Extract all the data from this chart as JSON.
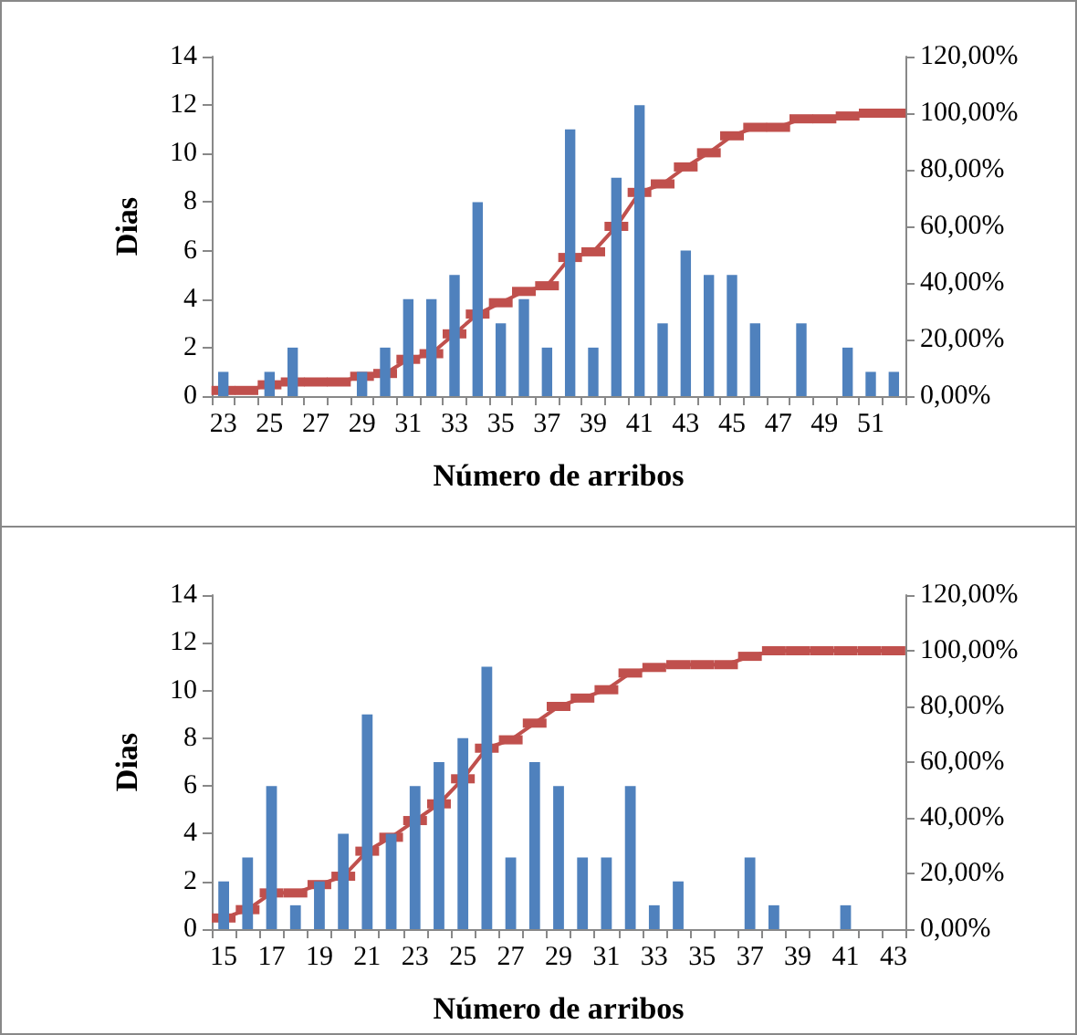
{
  "chart_data": [
    {
      "type": "bar",
      "xlabel": "Número de arribos",
      "ylabel": "Dias",
      "grid": false,
      "marker": "square",
      "categories": [
        "23",
        null,
        "25",
        null,
        "27",
        null,
        "29",
        null,
        "31",
        null,
        "33",
        null,
        "35",
        null,
        "37",
        null,
        "39",
        null,
        "41",
        null,
        "43",
        null,
        "45",
        null,
        "47",
        null,
        "49",
        null,
        "51",
        null
      ],
      "ylim": [
        0,
        14
      ],
      "yticks": [
        0,
        2,
        4,
        6,
        8,
        10,
        12,
        14
      ],
      "y2lim": [
        0,
        120
      ],
      "y2ticks": [
        {
          "value": 0,
          "label": "0,00%"
        },
        {
          "value": 20,
          "label": "20,00%"
        },
        {
          "value": 40,
          "label": "40,00%"
        },
        {
          "value": 60,
          "label": "60,00%"
        },
        {
          "value": 80,
          "label": "80,00%"
        },
        {
          "value": 100,
          "label": "100,00%"
        },
        {
          "value": 120,
          "label": "120,00%"
        }
      ],
      "series": [
        {
          "color": "#4f81bd",
          "values": [
            1,
            0,
            1,
            2,
            0,
            0,
            1,
            2,
            4,
            4,
            5,
            8,
            3,
            4,
            2,
            11,
            2,
            9,
            12,
            3,
            6,
            5,
            5,
            3,
            0,
            3,
            0,
            2,
            1,
            1
          ]
        },
        {
          "type": "line",
          "axis": "y2",
          "color": "#c0504d",
          "values": [
            2,
            2,
            4,
            5,
            5,
            5,
            7,
            8,
            13,
            15,
            22,
            29,
            33,
            37,
            39,
            49,
            51,
            60,
            72,
            75,
            81,
            86,
            92,
            95,
            95,
            98,
            98,
            99,
            100,
            100
          ]
        }
      ]
    },
    {
      "type": "bar",
      "xlabel": "Número de arribos",
      "ylabel": "Dias",
      "grid": false,
      "marker": "square",
      "categories": [
        "15",
        null,
        "17",
        null,
        "19",
        null,
        "21",
        null,
        "23",
        null,
        "25",
        null,
        "27",
        null,
        "29",
        null,
        "31",
        null,
        "33",
        null,
        "35",
        null,
        "37",
        null,
        "39",
        null,
        "41",
        null,
        "43"
      ],
      "ylim": [
        0,
        14
      ],
      "yticks": [
        0,
        2,
        4,
        6,
        8,
        10,
        12,
        14
      ],
      "y2lim": [
        0,
        120
      ],
      "y2ticks": [
        {
          "value": 0,
          "label": "0,00%"
        },
        {
          "value": 20,
          "label": "20,00%"
        },
        {
          "value": 40,
          "label": "40,00%"
        },
        {
          "value": 60,
          "label": "60,00%"
        },
        {
          "value": 80,
          "label": "80,00%"
        },
        {
          "value": 100,
          "label": "100,00%"
        },
        {
          "value": 120,
          "label": "120,00%"
        }
      ],
      "series": [
        {
          "color": "#4f81bd",
          "values": [
            2,
            3,
            6,
            1,
            2,
            4,
            9,
            4,
            6,
            7,
            8,
            11,
            3,
            7,
            6,
            3,
            3,
            6,
            1,
            2,
            0,
            0,
            3,
            1,
            0,
            0,
            1,
            0,
            0
          ]
        },
        {
          "type": "line",
          "axis": "y2",
          "color": "#c0504d",
          "values": [
            4,
            7,
            13,
            13,
            16,
            19,
            28,
            33,
            39,
            45,
            54,
            65,
            68,
            74,
            80,
            83,
            86,
            92,
            94,
            95,
            95,
            95,
            98,
            100,
            100,
            100,
            100,
            100,
            100
          ]
        }
      ]
    }
  ]
}
